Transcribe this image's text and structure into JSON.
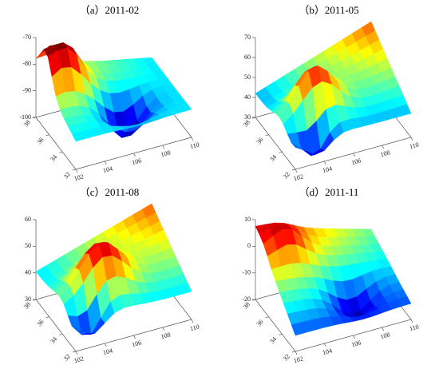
{
  "chart_data": [
    {
      "type": "surface3d",
      "title": "（a）2011-02",
      "xlim": [
        102,
        110
      ],
      "xticks": [
        102,
        104,
        106,
        108,
        110
      ],
      "ylim": [
        32,
        38
      ],
      "yticks": [
        32,
        34,
        36,
        38
      ],
      "zlim": [
        -100,
        -70
      ],
      "zticks": [
        -100,
        -90,
        -80,
        -70
      ]
    },
    {
      "type": "surface3d",
      "title": "（b）2011-05",
      "xlim": [
        102,
        110
      ],
      "xticks": [
        102,
        104,
        106,
        108,
        110
      ],
      "ylim": [
        32,
        38
      ],
      "yticks": [
        32,
        34,
        36,
        38
      ],
      "zlim": [
        30,
        70
      ],
      "zticks": [
        30,
        40,
        50,
        60,
        70
      ]
    },
    {
      "type": "surface3d",
      "title": "（c）2011-08",
      "xlim": [
        102,
        110
      ],
      "xticks": [
        102,
        104,
        106,
        108,
        110
      ],
      "ylim": [
        32,
        38
      ],
      "yticks": [
        32,
        34,
        36,
        38
      ],
      "zlim": [
        30,
        60
      ],
      "zticks": [
        30,
        40,
        50,
        60
      ]
    },
    {
      "type": "surface3d",
      "title": "（d）2011-11",
      "xlim": [
        102,
        110
      ],
      "xticks": [
        102,
        104,
        106,
        108,
        110
      ],
      "ylim": [
        32,
        38
      ],
      "yticks": [
        32,
        34,
        36,
        38
      ],
      "zlim": [
        -20,
        10
      ],
      "zticks": [
        -20,
        -10,
        0,
        10
      ]
    }
  ]
}
